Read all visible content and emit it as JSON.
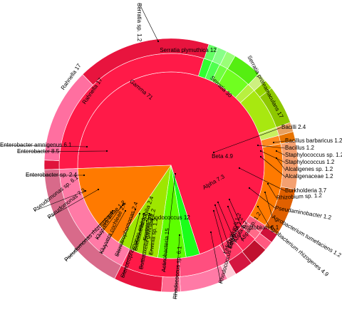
{
  "chart_data": {
    "type": "sunburst",
    "title": "",
    "unit": "",
    "rings": {
      "level1": [
        {
          "name": "Gamma",
          "label": "Gamma 71",
          "value": 71,
          "color": "#ff1a48"
        },
        {
          "name": "Bacilli",
          "label": "Bacilli 2.4",
          "value": 2.4,
          "color": "#1aff1a"
        },
        {
          "name": "Beta",
          "label": "Beta 4.9",
          "value": 4.9,
          "color": "#5dff00"
        },
        {
          "name": "Alpha",
          "label": "Alpha 7.3",
          "value": 7.3,
          "color": "#9ee600"
        },
        {
          "name": "Actinobacteria",
          "label": "Actinobacteria 15",
          "value": 15,
          "color": "#ff7a00"
        }
      ],
      "level2": [
        {
          "label": "Serratia 30",
          "value": 30,
          "color": "#ff1a48"
        },
        {
          "label": "Bacillus 1.2",
          "value": 1.2,
          "color": "#30ff30"
        },
        {
          "label": "Staphylococcus 1.2",
          "value": 1.2,
          "color": "#50ff50"
        },
        {
          "label": "Alcaligenaceae 1.2",
          "value": 1.2,
          "color": "#70ff40"
        },
        {
          "label": "Burkholderia 3.7",
          "value": 3.7,
          "color": "#70ff20"
        },
        {
          "label": "Pseudaminobacter 1.2",
          "value": 1.2,
          "color": "#b8f040"
        },
        {
          "label": "Rhizobium 6.1",
          "value": 6.1,
          "color": "#a8e810"
        },
        {
          "label": "Afipia 1.2",
          "value": 1.2,
          "color": "#c8f060"
        },
        {
          "label": "Lefebvria 1.2",
          "value": 1.2,
          "color": "#ff8a20"
        },
        {
          "label": "Rhodococcus 12",
          "value": 12,
          "color": "#ff7a00"
        },
        {
          "label": "Erwinia 1.2",
          "value": 1.2,
          "color": "#ff5a7a"
        },
        {
          "label": "Buttiauxella 1.2",
          "value": 1.2,
          "color": "#ff6a88"
        },
        {
          "label": "Stenotrophomonas 2.4",
          "value": 2.4,
          "color": "#ff2a5a"
        },
        {
          "label": "Kluyvera 2.4",
          "value": 2.4,
          "color": "#ff3a66"
        },
        {
          "label": "Pseudomonas 7.3",
          "value": 7.3,
          "color": "#ff4f7f"
        },
        {
          "label": "Enterobacter 8.5",
          "value": 8.5,
          "color": "#ff1a48"
        },
        {
          "label": "Rahnella 17",
          "value": 17,
          "color": "#ff7aa6"
        }
      ],
      "level3": [
        {
          "label": "Serratia sp. 1.2",
          "value": 1.2,
          "color": "#e0143c"
        },
        {
          "label": "Serratia plymuthica 12",
          "value": 12,
          "color": "#ff6fa0"
        },
        {
          "label": "Serratia proteamaculans 17",
          "value": 17,
          "color": "#e8143e"
        },
        {
          "label": "Bacillus barbaricus 1.2",
          "value": 1.2,
          "color": "#66ff66"
        },
        {
          "label": "Staphylococcus sp. 1.2",
          "value": 1.2,
          "color": "#88ff88"
        },
        {
          "label": "Alcaligenes sp. 1.2",
          "value": 1.2,
          "color": "#99ff77"
        },
        {
          "label": "Burkholderia 3.7",
          "value": 3.7,
          "color": "#55ee11"
        },
        {
          "label": "Rhizobium sp. 1.2",
          "value": 1.2,
          "color": "#cdf080"
        },
        {
          "label": "Agrobacterium tumefaciens 1.2",
          "value": 1.2,
          "color": "#98d800"
        },
        {
          "label": "Agrobacterium rhizogenes 4.9",
          "value": 4.9,
          "color": "#8ec800"
        },
        {
          "label": "Afipia sp. 1.2",
          "value": 1.2,
          "color": "#e8a060"
        },
        {
          "label": "Lefebvria xyli 1.2",
          "value": 1.2,
          "color": "#e87400"
        },
        {
          "label": "Rhodococcus equi 6.1",
          "value": 6.1,
          "color": "#f4a070"
        },
        {
          "label": "Rhodococcus sp. 6.1",
          "value": 6.1,
          "color": "#e06000"
        },
        {
          "label": "Erwinia 1.2",
          "value": 1.2,
          "color": "#d0103a"
        },
        {
          "label": "Buttiauxella gaviniae 1.2",
          "value": 1.2,
          "color": "#ff5a80"
        },
        {
          "label": "Stenotrophomonas maltophilia 2.4",
          "value": 2.4,
          "color": "#c0102e"
        },
        {
          "label": "Kluyvera cochleae 2.4",
          "value": 2.4,
          "color": "#d41640"
        },
        {
          "label": "Pseudomonas rhizosphaerae 1.2",
          "value": 1.2,
          "color": "#ffccd8"
        },
        {
          "label": "Pseudomonas sp. 6.1",
          "value": 6.1,
          "color": "#ff7aa6"
        },
        {
          "label": "Enterobacter sp. 2.4",
          "value": 2.4,
          "color": "#ff6a90"
        },
        {
          "label": "Enterobacter amnigenus 6.1",
          "value": 6.1,
          "color": "#e8143e"
        },
        {
          "label": "Rahnella 17",
          "value": 17,
          "color": "#d86a8a"
        }
      ]
    },
    "placed_labels": [
      {
        "text": "Gamma 71",
        "kind": "inner"
      },
      {
        "text": "Serratia 30",
        "kind": "inner"
      },
      {
        "text": "Rahnella 17",
        "kind": "inner"
      },
      {
        "text": "Rhodococcus 12",
        "kind": "inner"
      },
      {
        "text": "Beta 4.9",
        "kind": "inner"
      },
      {
        "text": "Alpha 7.3",
        "kind": "inner"
      },
      {
        "text": "Serratia plymuthica 12",
        "kind": "ring"
      },
      {
        "text": "Serratia proteamaculans 17",
        "kind": "ring"
      },
      {
        "text": "Rahnella 17",
        "kind": "ring"
      },
      {
        "text": "Serratia sp. 1.2",
        "kind": "outside"
      },
      {
        "text": "Bacilli 2.4",
        "kind": "outside"
      },
      {
        "text": "Bacillus barbaricus 1.2",
        "kind": "outside"
      },
      {
        "text": "Bacillus 1.2",
        "kind": "outside"
      },
      {
        "text": "Staphylococcus sp. 1.2",
        "kind": "outside"
      },
      {
        "text": "Staphylococcus 1.2",
        "kind": "outside"
      },
      {
        "text": "Alcaligenes sp. 1.2",
        "kind": "outside"
      },
      {
        "text": "Alcaligenaceae 1.2",
        "kind": "outside"
      },
      {
        "text": "Burkholderia 3.7",
        "kind": "outside"
      },
      {
        "text": "Rhizobium sp. 1.2",
        "kind": "outside"
      },
      {
        "text": "Pseudaminobacter 1.2",
        "kind": "outside"
      },
      {
        "text": "Agrobacterium tumefaciens 1.2",
        "kind": "outside"
      },
      {
        "text": "Agrobacterium rhizogenes 4.9",
        "kind": "outside"
      },
      {
        "text": "Rhizobium 6.1",
        "kind": "outside"
      },
      {
        "text": "Enterobacter amnigenus 6.1",
        "kind": "outside"
      },
      {
        "text": "Enterobacter 8.5",
        "kind": "outside"
      },
      {
        "text": "Enterobacter sp. 2.4",
        "kind": "outside"
      },
      {
        "text": "Pseudomonas sp. 6.1",
        "kind": "outside"
      },
      {
        "text": "Pseudomonas 7.3",
        "kind": "outside"
      },
      {
        "text": "Pseudomonas rhizosphaerae 1.2",
        "kind": "outside"
      },
      {
        "text": "Kluyvera 2.4",
        "kind": "outside"
      },
      {
        "text": "Kluyvera cochleae 2.4",
        "kind": "outside"
      },
      {
        "text": "Stenotrophomonas 2.4",
        "kind": "outside"
      },
      {
        "text": "Stenotrophomonas maltophilia 2.4",
        "kind": "outside"
      },
      {
        "text": "Buttiauxella 1.2",
        "kind": "outside"
      },
      {
        "text": "Buttiauxella gaviniae 1.2",
        "kind": "outside"
      },
      {
        "text": "Erwinia 1.2",
        "kind": "outside"
      },
      {
        "text": "Erwinia sp. 1.2",
        "kind": "outside"
      },
      {
        "text": "Actinobacteria 15",
        "kind": "outside"
      },
      {
        "text": "Rhodococcus sp. 6.1",
        "kind": "outside"
      },
      {
        "text": "Rhodococcus equi 6.1",
        "kind": "outside"
      },
      {
        "text": "Lefebvria xyli 1.2",
        "kind": "outside"
      },
      {
        "text": "Lefebvria 1.2",
        "kind": "outside"
      },
      {
        "text": "Afipia 1.2",
        "kind": "outside"
      },
      {
        "text": "Afipia sp. 1.2",
        "kind": "outside"
      }
    ]
  }
}
